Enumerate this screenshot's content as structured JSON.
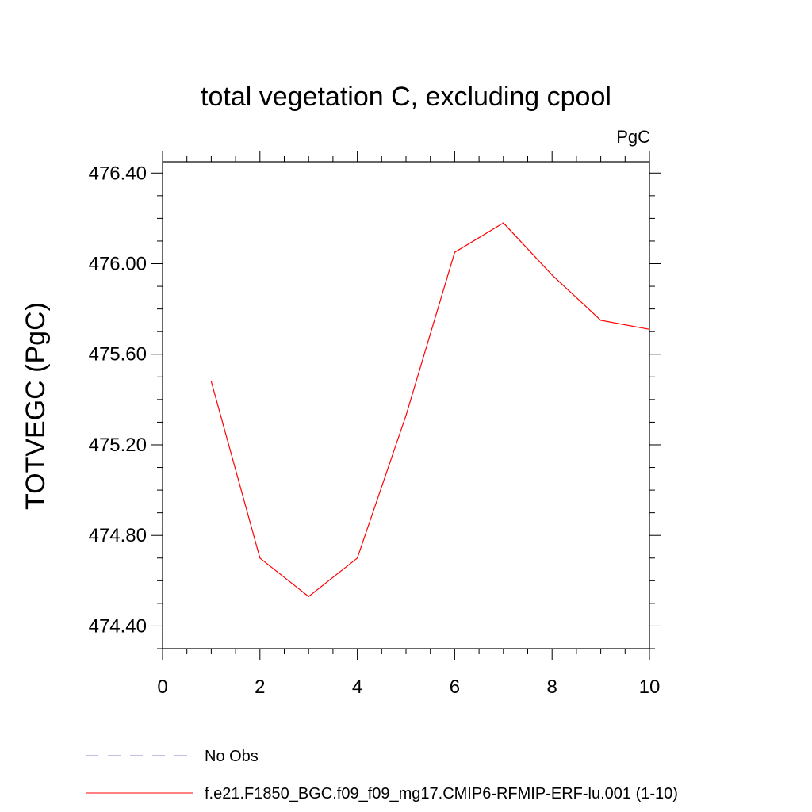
{
  "chart_data": {
    "type": "line",
    "title": "total vegetation C, excluding cpool",
    "units_label": "PgC",
    "xlabel": "",
    "ylabel": "TOTVEGC  (PgC)",
    "xlim": [
      0,
      10
    ],
    "ylim": [
      474.3,
      476.45
    ],
    "x_ticks": [
      0,
      2,
      4,
      6,
      8,
      10
    ],
    "x_tick_labels": [
      "0",
      "2",
      "4",
      "6",
      "8",
      "10"
    ],
    "y_ticks": [
      474.4,
      474.8,
      475.2,
      475.6,
      476.0,
      476.4
    ],
    "y_tick_labels": [
      "474.40",
      "474.80",
      "475.20",
      "475.60",
      "476.00",
      "476.40"
    ],
    "grid": false,
    "series": [
      {
        "name": "f.e21.F1850_BGC.f09_f09_mg17.CMIP6-RFMIP-ERF-lu.001 (1-10)",
        "color": "#ff0000",
        "style": "solid",
        "x": [
          1,
          2,
          3,
          4,
          5,
          6,
          7,
          8,
          9,
          10
        ],
        "values": [
          475.48,
          474.7,
          474.53,
          474.7,
          475.33,
          476.05,
          476.18,
          475.95,
          475.75,
          475.71
        ]
      }
    ],
    "legend": [
      {
        "label": "No Obs",
        "color": "#8a7fd1",
        "style": "dashed"
      },
      {
        "label": "f.e21.F1850_BGC.f09_f09_mg17.CMIP6-RFMIP-ERF-lu.001 (1-10)",
        "color": "#ff0000",
        "style": "solid"
      }
    ]
  }
}
